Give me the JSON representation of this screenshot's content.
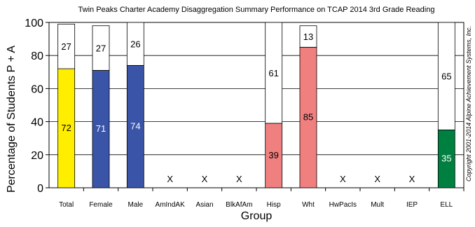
{
  "chart_data": {
    "type": "bar",
    "title": "Twin Peaks Charter Academy Disaggregation Summary Performance on TCAP 2014 3rd Grade Reading",
    "xlabel": "Group",
    "ylabel": "Percentage of Students P + A",
    "ylim": [
      0,
      100
    ],
    "yticks": [
      0,
      20,
      40,
      60,
      80,
      100
    ],
    "grid": true,
    "stacked": true,
    "categories": [
      "Total",
      "Female",
      "Male",
      "AmIndAK",
      "Asian",
      "BlkAfAm",
      "Hisp",
      "Wht",
      "HwPacIs",
      "Mult",
      "IEP",
      "ELL"
    ],
    "series": [
      {
        "values": [
          72,
          71,
          74,
          null,
          null,
          null,
          39,
          85,
          null,
          null,
          null,
          35
        ],
        "colors": [
          "#ffee00",
          "#3a55a8",
          "#3a55a8",
          null,
          null,
          null,
          "#f08080",
          "#f08080",
          null,
          null,
          null,
          "#008040"
        ]
      },
      {
        "values": [
          27,
          27,
          26,
          null,
          null,
          null,
          61,
          13,
          null,
          null,
          null,
          65
        ],
        "colors": [
          "#ffffff",
          "#ffffff",
          "#ffffff",
          null,
          null,
          null,
          "#ffffff",
          "#ffffff",
          null,
          null,
          null,
          "#ffffff"
        ]
      }
    ],
    "label_colors": [
      "#000000",
      "#ffffff",
      "#ffffff",
      null,
      null,
      null,
      "#000000",
      "#000000",
      null,
      null,
      null,
      "#ffffff"
    ],
    "missing_marker": "X",
    "copyright": "Copyright 2001-2014 Alpine Achievement Systems, Inc."
  }
}
